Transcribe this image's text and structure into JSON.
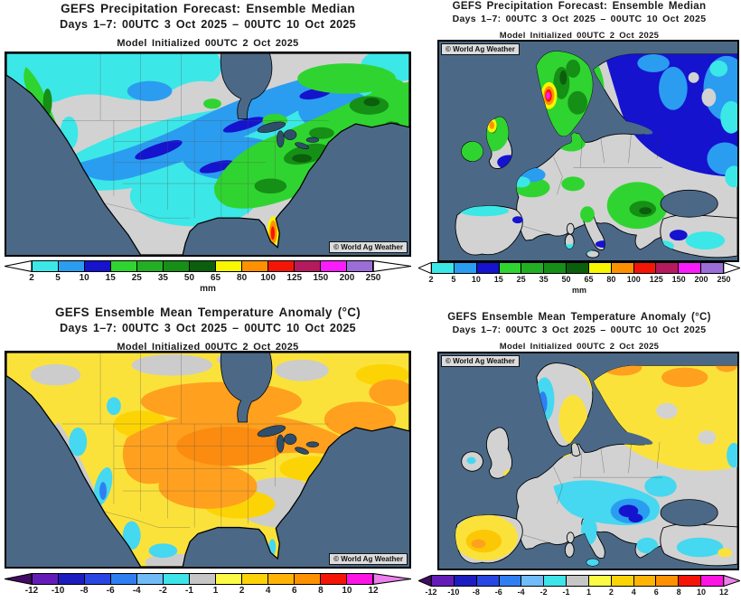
{
  "watermark": "© World Ag Weather",
  "colors": {
    "ocean": "#4B6987",
    "land": "#D2D2D2",
    "lake": "#2F4E6C",
    "text": "#1a1a1a"
  },
  "panels": {
    "precip_na": {
      "title": "GEFS Precipitation Forecast: Ensemble Median",
      "subtitle": "Days 1–7: 00UTC 3 Oct 2025 – 00UTC 10 Oct 2025",
      "model_init": "Model Initialized 00UTC 2 Oct 2025"
    },
    "precip_eu": {
      "title": "GEFS Precipitation Forecast: Ensemble Median",
      "subtitle": "Days 1–7: 00UTC 3 Oct 2025 – 00UTC 10 Oct 2025",
      "model_init": "Model Initialized 00UTC 2 Oct 2025"
    },
    "temp_na": {
      "title": "GEFS Ensemble Mean Temperature Anomaly (°C)",
      "subtitle": "Days 1–7: 00UTC 3 Oct 2025 – 00UTC 10 Oct 2025",
      "model_init": "Model Initialized 00UTC 2 Oct 2025"
    },
    "temp_eu": {
      "title": "GEFS Ensemble Mean Temperature Anomaly (°C)",
      "subtitle": "Days 1–7: 00UTC 3 Oct 2025 – 00UTC 10 Oct 2025",
      "model_init": "Model Initialized 00UTC 2 Oct 2025"
    }
  },
  "scales": {
    "precip": {
      "unit": "mm",
      "ticks": [
        "2",
        "5",
        "10",
        "15",
        "25",
        "35",
        "50",
        "65",
        "80",
        "100",
        "125",
        "150",
        "200",
        "250"
      ],
      "segment_colors": [
        "#3CE7E7",
        "#2A9DF0",
        "#1513CE",
        "#30D430",
        "#23AF23",
        "#168F16",
        "#0B5E0B",
        "#F7F700",
        "#FF9100",
        "#F51507",
        "#B51A5E",
        "#FB1CFB",
        "#9A6ED6"
      ],
      "arrow_left_color": "#FFFFFF",
      "arrow_right_color": "#FFFFFF"
    },
    "temp": {
      "unit": "°C",
      "ticks": [
        "-12",
        "-10",
        "-8",
        "-6",
        "-4",
        "-2",
        "-1",
        "1",
        "2",
        "4",
        "6",
        "8",
        "10",
        "12"
      ],
      "segment_colors": [
        "#641CB8",
        "#1C1CC0",
        "#2746E3",
        "#2F7FF2",
        "#6FBCF8",
        "#3DE4EA",
        "#C6C6C6",
        "#FBFB45",
        "#FCD405",
        "#FFB405",
        "#FF9100",
        "#F51507",
        "#FB14E3"
      ],
      "arrow_left_color": "#430B66",
      "arrow_right_color": "#EC7FEC"
    }
  }
}
